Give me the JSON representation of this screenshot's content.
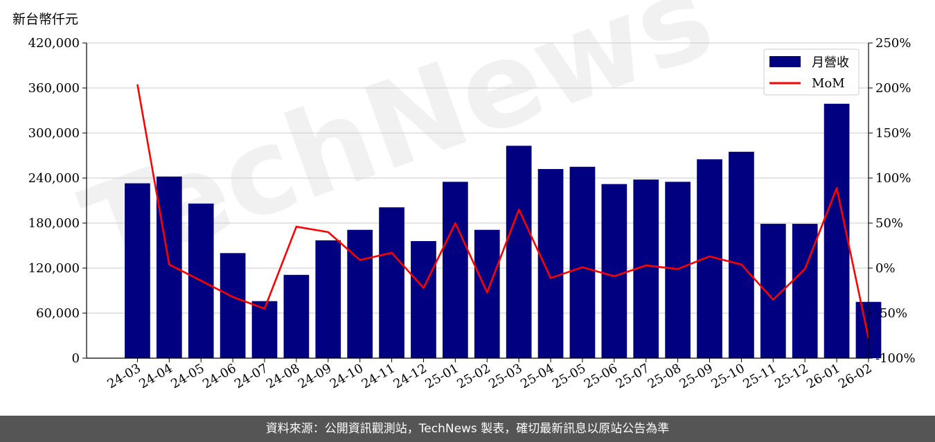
{
  "chart_data": {
    "type": "bar",
    "unit_label": "新台幣仟元",
    "categories": [
      "24-03",
      "24-04",
      "24-05",
      "24-06",
      "24-07",
      "24-08",
      "24-09",
      "24-10",
      "24-11",
      "24-12",
      "25-01",
      "25-02",
      "25-03",
      "25-04",
      "25-05",
      "25-06",
      "25-07",
      "25-08",
      "25-09",
      "25-10",
      "25-11",
      "25-12",
      "26-01",
      "26-02"
    ],
    "series": [
      {
        "name": "月營收",
        "type": "bar",
        "axis": "left",
        "color": "#000080",
        "values": [
          233000,
          242000,
          206000,
          140000,
          76000,
          111000,
          157000,
          171000,
          201000,
          156000,
          235000,
          171000,
          283000,
          252000,
          255000,
          232000,
          238000,
          235000,
          265000,
          275000,
          179000,
          179000,
          339000,
          75000
        ]
      },
      {
        "name": "MoM",
        "type": "line",
        "axis": "right",
        "color": "#ff0000",
        "values": [
          204,
          4,
          -14,
          -32,
          -45,
          46,
          40,
          9,
          17,
          -22,
          50,
          -27,
          65,
          -11,
          1,
          -9,
          3,
          -1,
          13,
          4,
          -35,
          -1,
          89,
          -78
        ]
      }
    ],
    "ylim": [
      0,
      420000
    ],
    "yticks": [
      "0",
      "60,000",
      "120,000",
      "180,000",
      "240,000",
      "300,000",
      "360,000",
      "420,000"
    ],
    "ytick_values": [
      0,
      60000,
      120000,
      180000,
      240000,
      300000,
      360000,
      420000
    ],
    "y2lim": [
      -100,
      250
    ],
    "y2ticks": [
      "-100%",
      "-50%",
      "0%",
      "50%",
      "100%",
      "150%",
      "200%",
      "250%"
    ],
    "y2tick_values": [
      -100,
      -50,
      0,
      50,
      100,
      150,
      200,
      250
    ],
    "grid": true,
    "legend": "top-right",
    "watermark": "TechNews"
  },
  "footer": {
    "text": "資料來源：公開資訊觀測站，TechNews 製表，確切最新訊息以原站公告為準"
  }
}
